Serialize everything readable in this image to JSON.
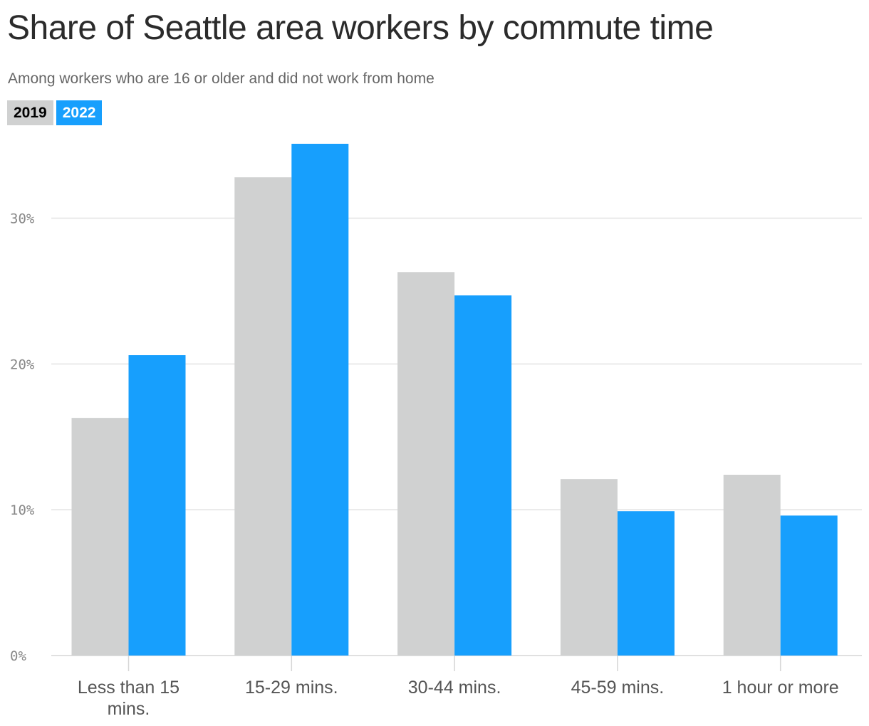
{
  "title": "Share of Seattle area workers by commute time",
  "subtitle": "Among workers who are 16 or older and did not work from home",
  "legend": [
    {
      "label": "2019",
      "color": "#d0d1d1",
      "text_color": "#000000"
    },
    {
      "label": "2022",
      "color": "#179ffd",
      "text_color": "#ffffff"
    }
  ],
  "chart_data": {
    "type": "bar",
    "title": "Share of Seattle area workers by commute time",
    "subtitle": "Among workers who are 16 or older and did not work from home",
    "categories": [
      "Less than 15 mins.",
      "15-29 mins.",
      "30-44 mins.",
      "45-59 mins.",
      "1 hour or more"
    ],
    "series": [
      {
        "name": "2019",
        "color": "#d0d1d1",
        "values": [
          16.3,
          32.8,
          26.3,
          12.1,
          12.4
        ]
      },
      {
        "name": "2022",
        "color": "#179ffd",
        "values": [
          20.6,
          35.1,
          24.7,
          9.9,
          9.6
        ]
      }
    ],
    "ylim": [
      0,
      35.1
    ],
    "yticks": [
      0,
      10,
      20,
      30
    ],
    "ytick_labels": [
      "0%",
      "10%",
      "20%",
      "30%"
    ],
    "grid": true,
    "legend_position": "top-left"
  }
}
